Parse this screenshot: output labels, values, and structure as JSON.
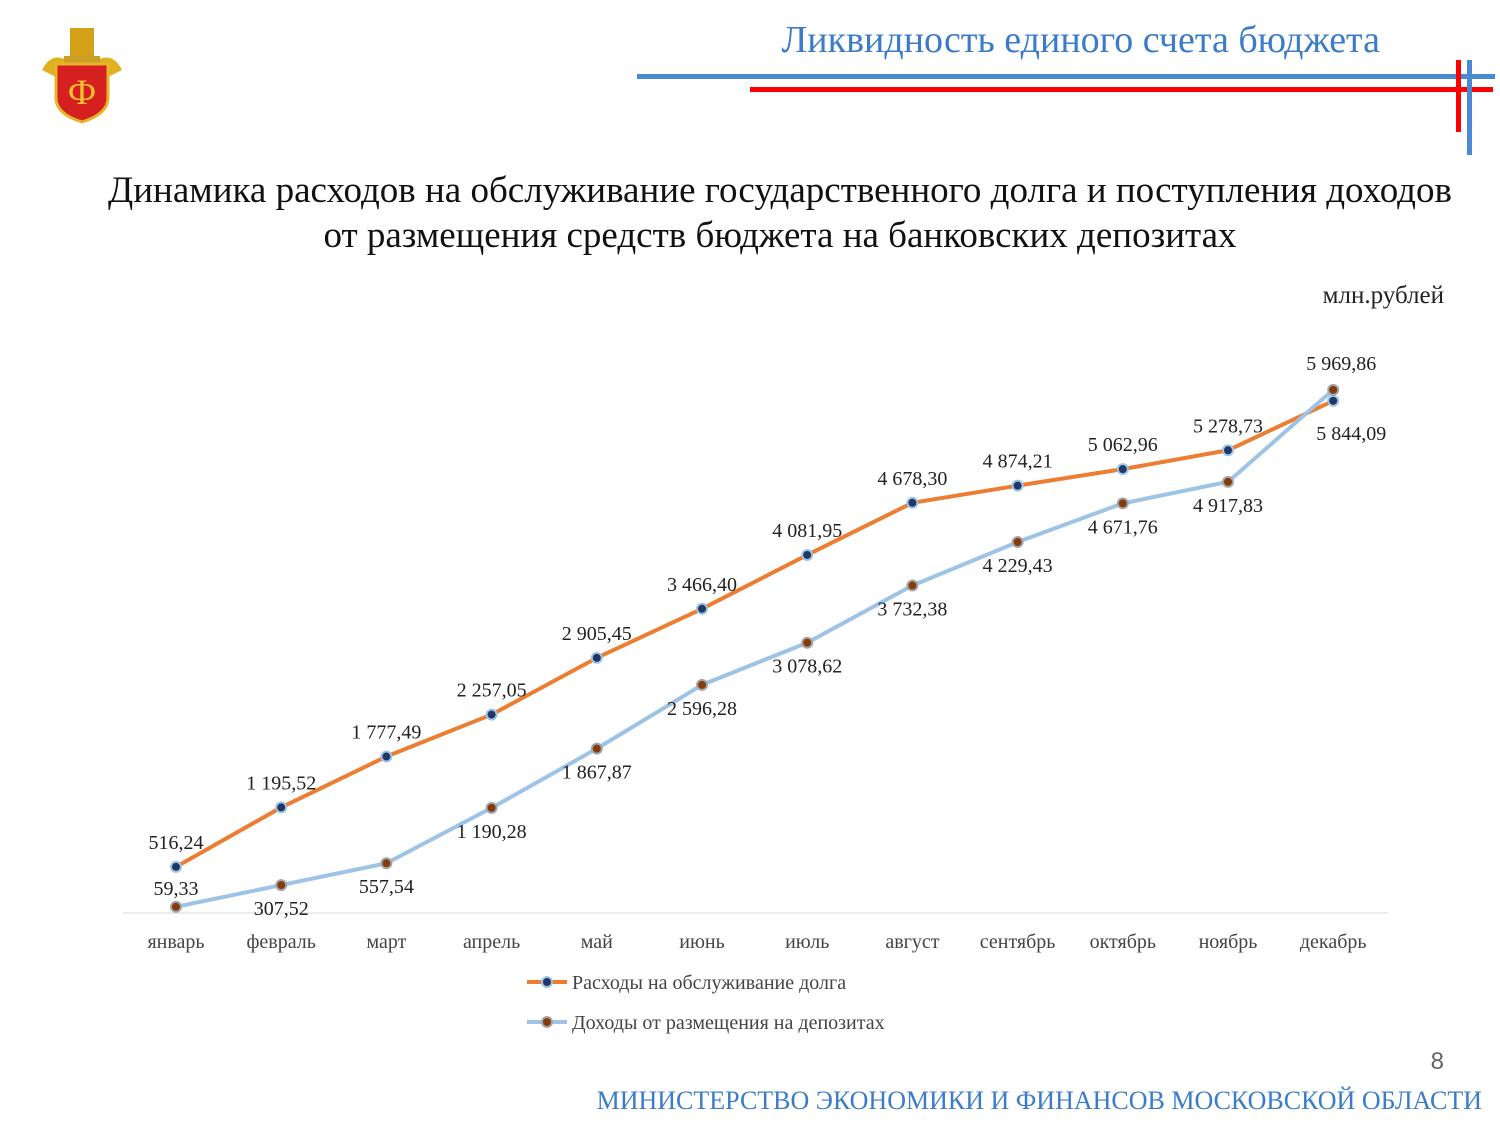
{
  "header": {
    "title": "Ликвидность единого счета бюджета"
  },
  "footer": {
    "ministry": "МИНИСТЕРСТВО ЭКОНОМИКИ И ФИНАНСОВ МОСКОВСКОЙ ОБЛАСТИ",
    "page_number": "8"
  },
  "colors": {
    "accent_blue": "#3a7cc9",
    "accent_red": "#ff0000",
    "series_orange": "#ed7d31",
    "series_blue": "#9dc3e6"
  },
  "chart_data": {
    "type": "line",
    "title": "Динамика расходов на обслуживание государственного долга и поступления доходов от размещения средств бюджета на банковских депозитах",
    "unit": "млн.рублей",
    "categories": [
      "январь",
      "февраль",
      "март",
      "апрель",
      "май",
      "июнь",
      "июль",
      "август",
      "сентябрь",
      "октябрь",
      "ноябрь",
      "декабрь"
    ],
    "ylim": [
      0,
      7000
    ],
    "grid": false,
    "legend": "bottom",
    "series": [
      {
        "name": "Расходы на обслуживание долга",
        "color": "#ed7d31",
        "marker_color": "#203864",
        "values": [
          516.24,
          1195.52,
          1777.49,
          2257.05,
          2905.45,
          3466.4,
          4081.95,
          4678.3,
          4874.21,
          5062.96,
          5278.73,
          5844.09
        ],
        "labels": [
          "516,24",
          "1 195,52",
          "1 777,49",
          "2 257,05",
          "2 905,45",
          "3 466,40",
          "4 081,95",
          "4 678,30",
          "4 874,21",
          "5 062,96",
          "5 278,73",
          "5 844,09"
        ]
      },
      {
        "name": "Доходы от размещения на депозитах",
        "color": "#9dc3e6",
        "marker_color": "#843c0c",
        "values": [
          59.33,
          307.52,
          557.54,
          1190.28,
          1867.87,
          2596.28,
          3078.62,
          3732.38,
          4229.43,
          4671.76,
          4917.83,
          5969.86
        ],
        "labels": [
          "59,33",
          "307,52",
          "557,54",
          "1 190,28",
          "1 867,87",
          "2 596,28",
          "3 078,62",
          "3 732,38",
          "4 229,43",
          "4 671,76",
          "4 917,83",
          "5 969,86"
        ]
      }
    ]
  }
}
